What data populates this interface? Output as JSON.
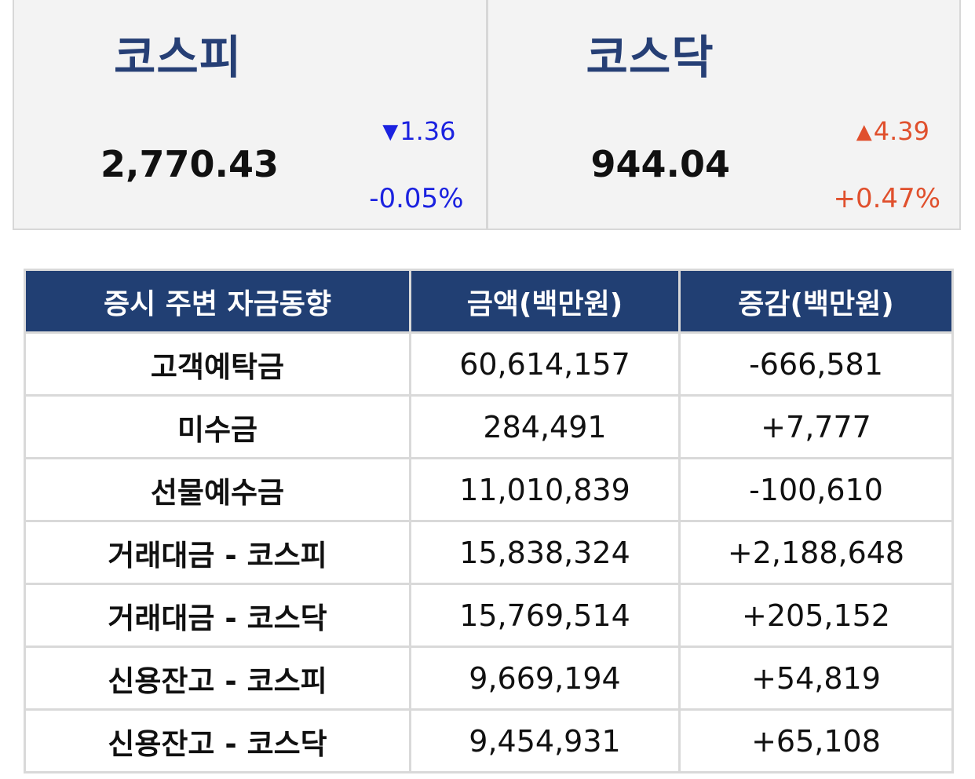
{
  "indices": {
    "kospi": {
      "name": "코스피",
      "value": "2,770.43",
      "change": "1.36",
      "change_pct": "-0.05%",
      "direction": "down",
      "arrow": "▼"
    },
    "kosdaq": {
      "name": "코스닥",
      "value": "944.04",
      "change": "4.39",
      "change_pct": "+0.47%",
      "direction": "up",
      "arrow": "▲"
    }
  },
  "table": {
    "headers": [
      "증시 주변 자금동향",
      "금액(백만원)",
      "증감(백만원)"
    ],
    "rows": [
      {
        "label": "고객예탁금",
        "amount": "60,614,157",
        "change": "-666,581",
        "direction": "down"
      },
      {
        "label": "미수금",
        "amount": "284,491",
        "change": "+7,777",
        "direction": "up"
      },
      {
        "label": "선물예수금",
        "amount": "11,010,839",
        "change": "-100,610",
        "direction": "down"
      },
      {
        "label": "거래대금 - 코스피",
        "amount": "15,838,324",
        "change": "+2,188,648",
        "direction": "up"
      },
      {
        "label": "거래대금 - 코스닥",
        "amount": "15,769,514",
        "change": "+205,152",
        "direction": "up"
      },
      {
        "label": "신용잔고 - 코스피",
        "amount": "9,669,194",
        "change": "+54,819",
        "direction": "up"
      },
      {
        "label": "신용잔고 - 코스닥",
        "amount": "9,454,931",
        "change": "+65,108",
        "direction": "up"
      }
    ]
  },
  "colors": {
    "up": "#e0502d",
    "down": "#1b22e0",
    "header_bg": "#213f73",
    "index_name": "#263f75"
  }
}
